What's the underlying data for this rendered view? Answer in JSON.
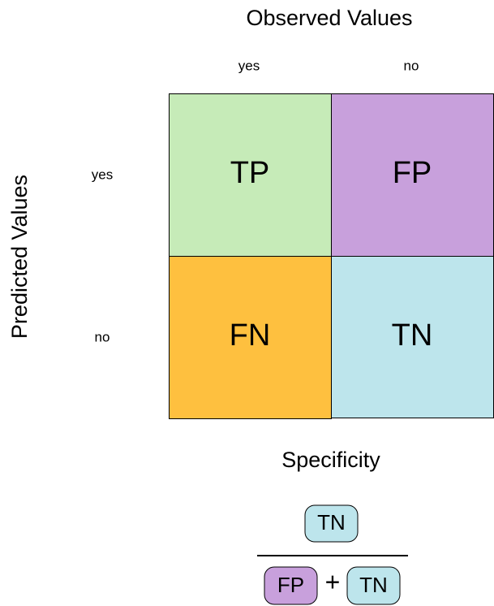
{
  "header": {
    "title": "Observed Values",
    "columns": [
      "yes",
      "no"
    ]
  },
  "side": {
    "title": "Predicted Values",
    "rows": [
      "yes",
      "no"
    ]
  },
  "matrix": {
    "cells": [
      [
        "TP",
        "FP"
      ],
      [
        "FN",
        "TN"
      ]
    ]
  },
  "formula": {
    "title": "Specificity",
    "numerator": "TN",
    "denominator": [
      "FP",
      "+",
      "TN"
    ]
  }
}
